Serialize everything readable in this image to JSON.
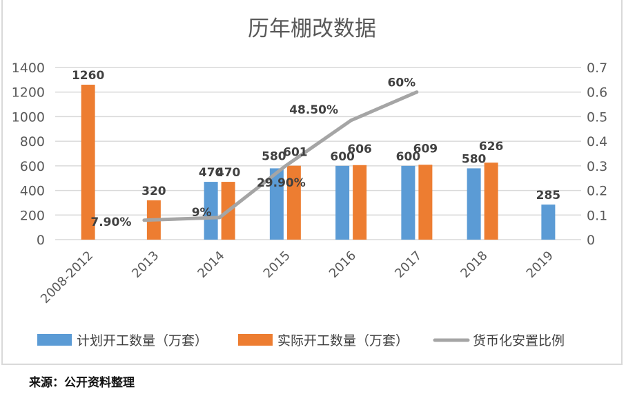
{
  "chart_data": {
    "type": "bar",
    "title": "历年棚改数据",
    "categories": [
      "2008-2012",
      "2013",
      "2014",
      "2015",
      "2016",
      "2017",
      "2018",
      "2019"
    ],
    "series": [
      {
        "name": "计划开工数量（万套）",
        "type": "bar",
        "axis": "left",
        "color": "#5b9bd5",
        "values": [
          null,
          null,
          470,
          580,
          600,
          600,
          580,
          285
        ],
        "labels": [
          "",
          "",
          "470",
          "580",
          "600",
          "600",
          "580",
          "285"
        ]
      },
      {
        "name": "实际开工数量（万套）",
        "type": "bar",
        "axis": "left",
        "color": "#ed7d31",
        "values": [
          1260,
          320,
          470,
          601,
          606,
          609,
          626,
          null
        ],
        "labels": [
          "1260",
          "320",
          "470",
          "601",
          "606",
          "609",
          "626",
          ""
        ]
      },
      {
        "name": "货币化安置比例",
        "type": "line",
        "axis": "right",
        "color": "#a5a5a5",
        "values": [
          null,
          0.079,
          0.09,
          0.299,
          0.485,
          0.6,
          null,
          null
        ],
        "labels": [
          "",
          "7.90%",
          "9%",
          "29.90%",
          "48.50%",
          "60%",
          "",
          ""
        ]
      }
    ],
    "y_left": {
      "ticks": [
        "0",
        "200",
        "400",
        "600",
        "800",
        "1000",
        "1200",
        "1400"
      ],
      "range": [
        0,
        1400
      ]
    },
    "y_right": {
      "ticks": [
        "0",
        "0.1",
        "0.2",
        "0.3",
        "0.4",
        "0.5",
        "0.6",
        "0.7"
      ],
      "range": [
        0,
        0.7
      ]
    },
    "grid": true,
    "legend_position": "bottom"
  },
  "source_note": "来源：公开资料整理"
}
